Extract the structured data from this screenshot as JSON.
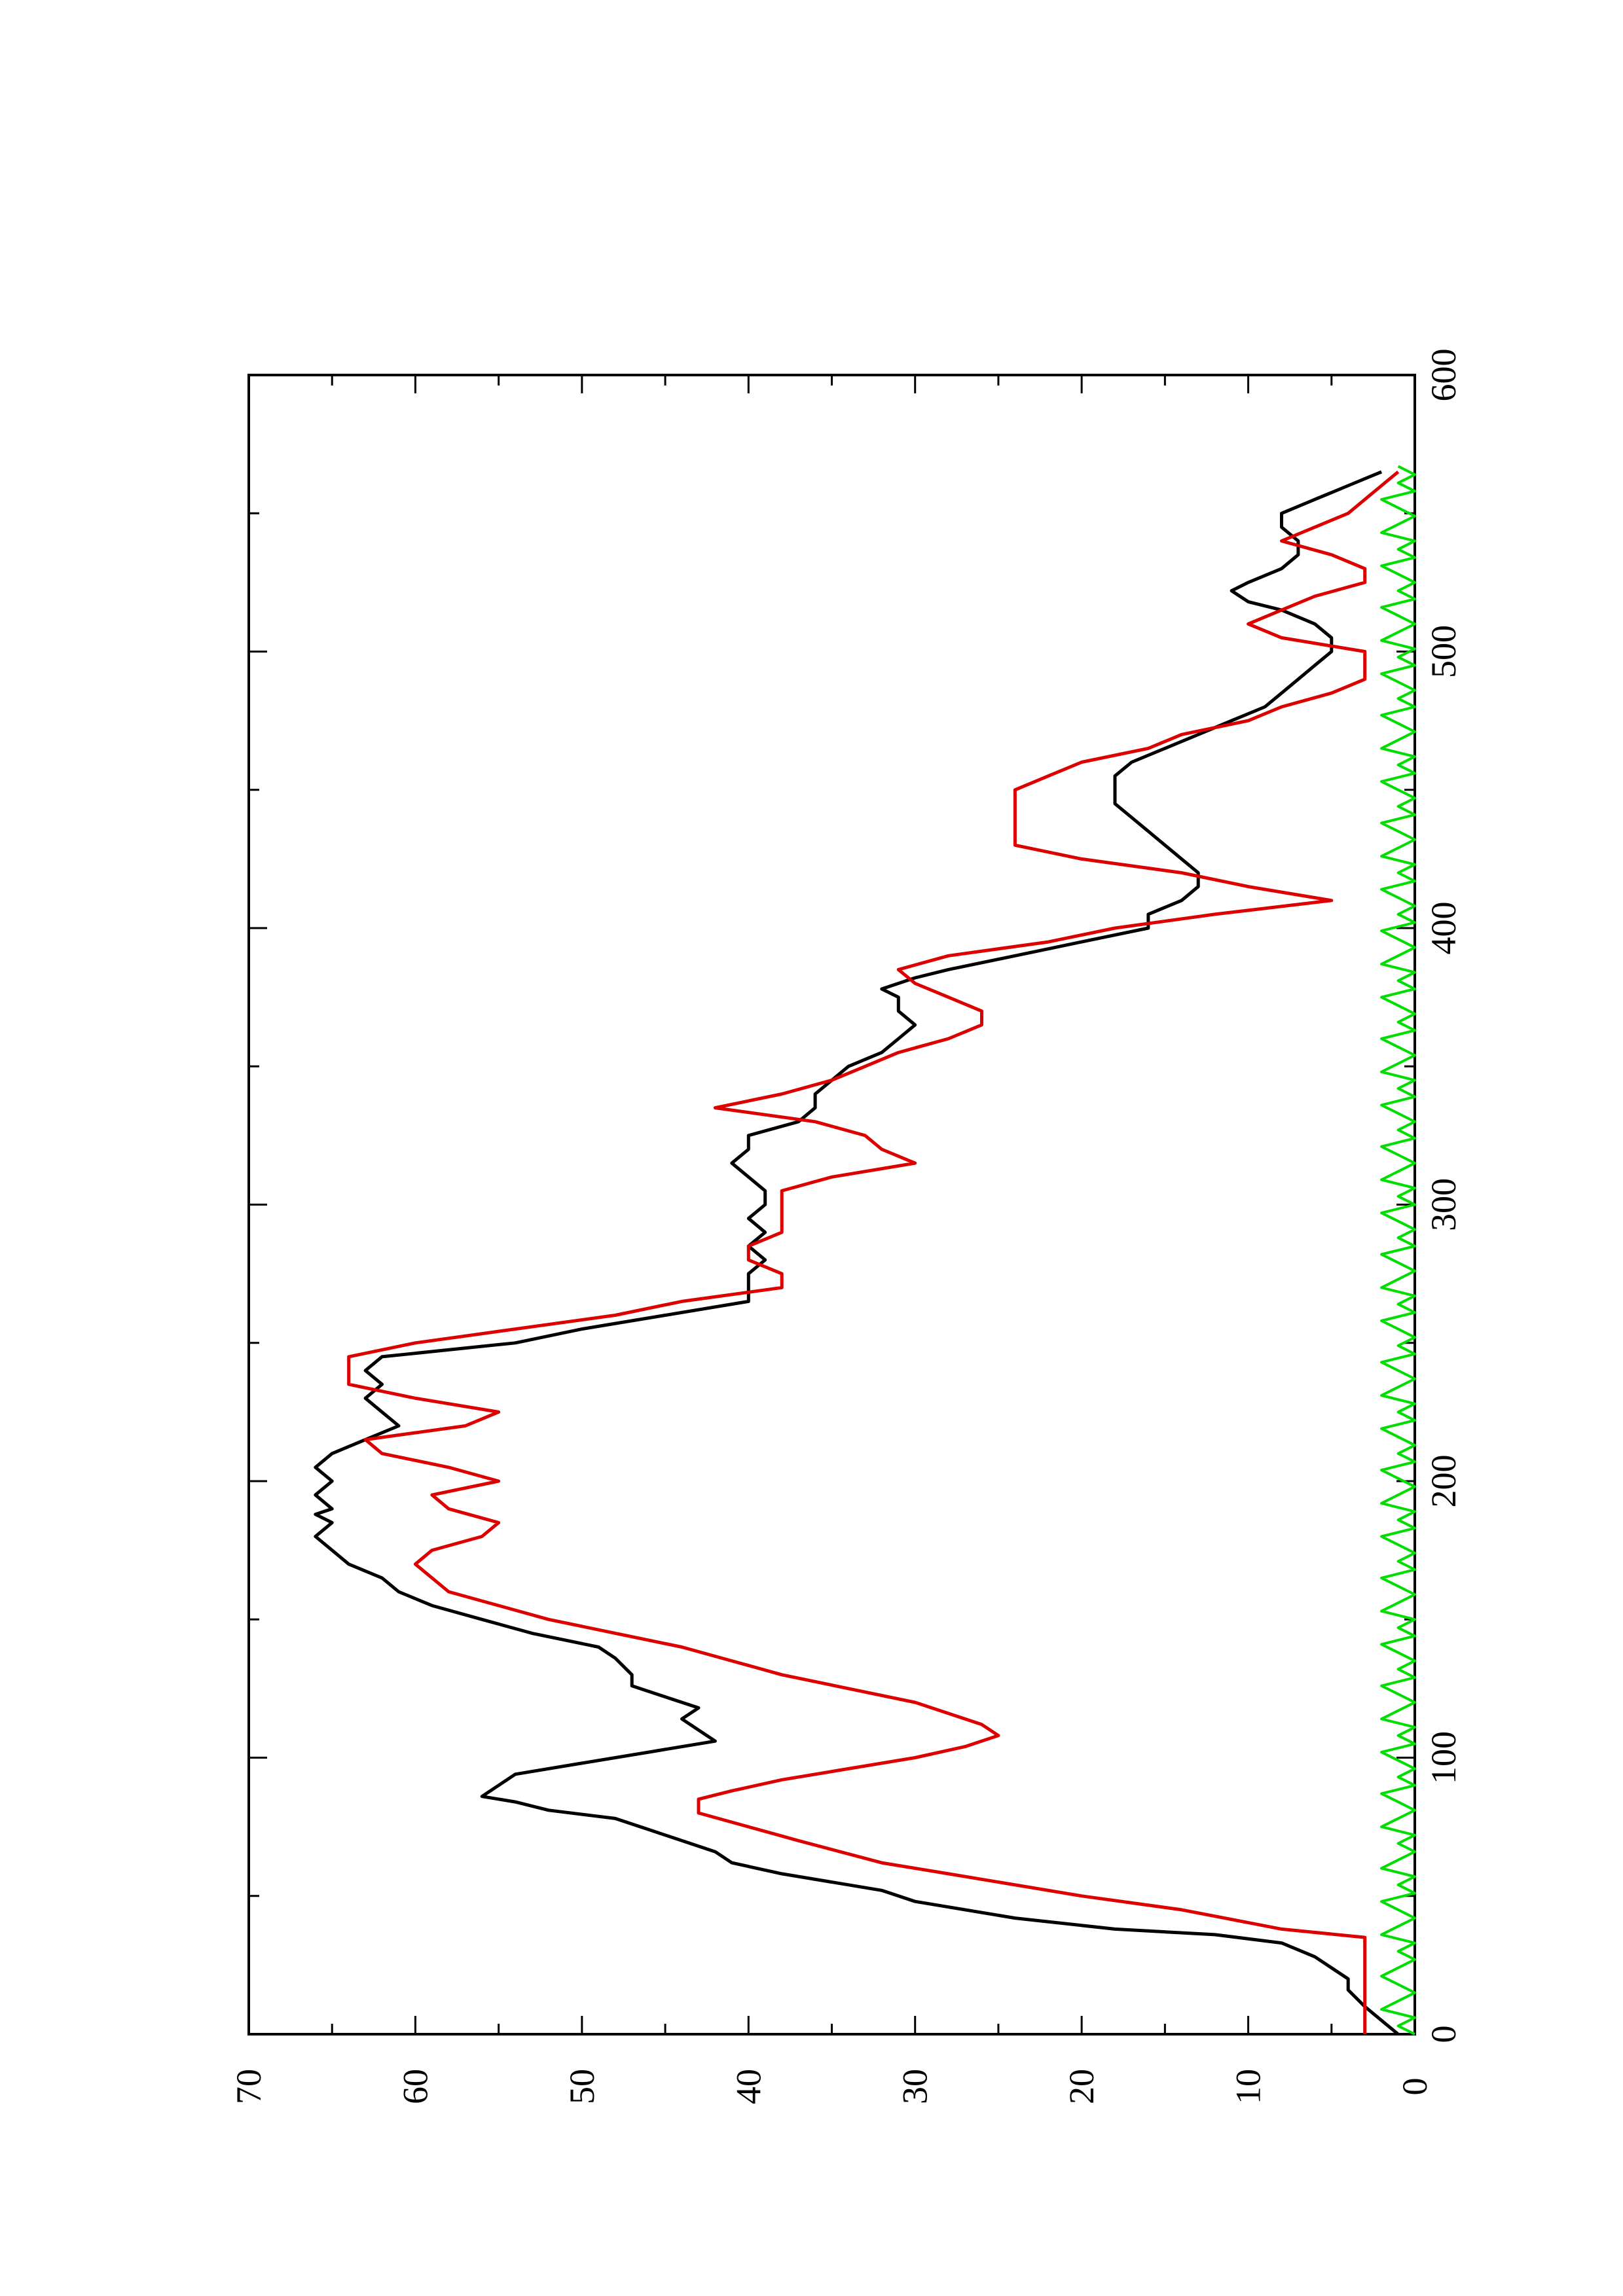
{
  "chart_data": {
    "type": "line",
    "orientation": "rotated-90-ccw",
    "title": "",
    "xlabel": "",
    "ylabel": "",
    "xlim": [
      0,
      600
    ],
    "ylim": [
      0,
      70
    ],
    "grid": false,
    "x_ticks": [
      "0",
      "100",
      "200",
      "300",
      "400",
      "500",
      "600"
    ],
    "y_ticks": [
      "0",
      "10",
      "20",
      "30",
      "40",
      "50",
      "60",
      "70"
    ],
    "colors": {
      "black": "#000000",
      "red": "#dd0000",
      "green": "#00dd00"
    },
    "series": [
      {
        "color": "black",
        "x": [
          0,
          5,
          10,
          16,
          20,
          28,
          33,
          36,
          38,
          42,
          48,
          52,
          58,
          62,
          66,
          70,
          74,
          78,
          81,
          84,
          86,
          90,
          94,
          98,
          102,
          106,
          110,
          114,
          118,
          122,
          126,
          130,
          136,
          140,
          145,
          150,
          155,
          160,
          165,
          170,
          175,
          180,
          185,
          188,
          190,
          195,
          200,
          205,
          210,
          215,
          220,
          225,
          230,
          235,
          240,
          245,
          250,
          255,
          260,
          265,
          270,
          275,
          280,
          285,
          290,
          295,
          300,
          305,
          310,
          315,
          320,
          325,
          330,
          335,
          340,
          345,
          350,
          355,
          360,
          365,
          370,
          375,
          378,
          382,
          385,
          390,
          395,
          400,
          405,
          410,
          415,
          420,
          425,
          430,
          435,
          440,
          445,
          450,
          455,
          460,
          465,
          470,
          475,
          480,
          485,
          490,
          495,
          500,
          505,
          510,
          515,
          518,
          522,
          525,
          530,
          535,
          540,
          545,
          550,
          555,
          560,
          565
        ],
        "y": [
          1,
          2,
          3,
          4,
          4,
          6,
          8,
          12,
          18,
          24,
          30,
          32,
          38,
          41,
          42,
          44,
          46,
          48,
          52,
          54,
          56,
          55,
          54,
          50,
          46,
          42,
          43,
          44,
          43,
          45,
          47,
          47,
          48,
          49,
          53,
          56,
          59,
          61,
          62,
          64,
          65,
          66,
          65,
          66,
          65,
          66,
          65,
          66,
          65,
          63,
          61,
          62,
          63,
          62,
          63,
          62,
          54,
          50,
          45,
          40,
          40,
          40,
          39,
          40,
          39,
          40,
          39,
          39,
          40,
          41,
          40,
          40,
          37,
          36,
          36,
          35,
          34,
          32,
          31,
          30,
          31,
          31,
          32,
          30,
          28,
          24,
          20,
          16,
          16,
          14,
          13,
          13,
          14,
          15,
          16,
          17,
          18,
          18,
          18,
          17,
          15,
          13,
          11,
          9,
          8,
          7,
          6,
          5,
          5,
          6,
          8,
          10,
          11,
          10,
          8,
          7,
          7,
          8,
          8,
          6,
          4,
          2
        ]
      },
      {
        "color": "red",
        "x": [
          0,
          8,
          12,
          25,
          35,
          38,
          45,
          50,
          58,
          62,
          70,
          75,
          80,
          85,
          88,
          92,
          96,
          100,
          104,
          108,
          112,
          116,
          120,
          125,
          130,
          135,
          140,
          145,
          150,
          155,
          160,
          165,
          170,
          175,
          180,
          185,
          190,
          195,
          200,
          205,
          210,
          215,
          220,
          225,
          230,
          235,
          240,
          245,
          250,
          255,
          260,
          265,
          270,
          275,
          280,
          285,
          290,
          295,
          300,
          305,
          310,
          315,
          320,
          325,
          330,
          335,
          340,
          345,
          350,
          355,
          360,
          365,
          370,
          375,
          380,
          385,
          390,
          395,
          400,
          405,
          410,
          415,
          420,
          425,
          430,
          435,
          440,
          445,
          450,
          455,
          460,
          465,
          470,
          475,
          480,
          485,
          490,
          495,
          500,
          505,
          510,
          515,
          520,
          525,
          530,
          535,
          540,
          545,
          550,
          555,
          560,
          565
        ],
        "y": [
          3,
          3,
          3,
          3,
          3,
          8,
          14,
          20,
          28,
          32,
          37,
          40,
          43,
          43,
          41,
          38,
          34,
          30,
          27,
          25,
          26,
          28,
          30,
          34,
          38,
          41,
          44,
          48,
          52,
          55,
          58,
          59,
          60,
          59,
          56,
          55,
          58,
          59,
          55,
          58,
          62,
          63,
          57,
          55,
          60,
          64,
          64,
          64,
          60,
          54,
          48,
          44,
          38,
          38,
          40,
          40,
          38,
          38,
          38,
          38,
          35,
          30,
          32,
          33,
          36,
          42,
          38,
          35,
          33,
          31,
          28,
          26,
          26,
          28,
          30,
          31,
          28,
          22,
          18,
          12,
          5,
          10,
          14,
          20,
          24,
          24,
          24,
          24,
          24,
          22,
          20,
          16,
          14,
          10,
          8,
          5,
          3,
          3,
          3,
          8,
          10,
          8,
          6,
          3,
          3,
          5,
          8,
          6,
          4,
          3,
          2,
          1
        ]
      },
      {
        "color": "green",
        "x": [
          0,
          3,
          6,
          9,
          12,
          15,
          18,
          21,
          24,
          27,
          30,
          33,
          36,
          39,
          42,
          45,
          48,
          51,
          54,
          57,
          60,
          63,
          66,
          69,
          72,
          75,
          78,
          81,
          84,
          87,
          90,
          93,
          96,
          99,
          102,
          105,
          108,
          111,
          114,
          117,
          120,
          123,
          126,
          129,
          132,
          135,
          138,
          141,
          144,
          147,
          150,
          153,
          156,
          159,
          162,
          165,
          168,
          171,
          174,
          177,
          180,
          183,
          186,
          189,
          192,
          195,
          198,
          201,
          204,
          207,
          210,
          213,
          216,
          219,
          222,
          225,
          228,
          231,
          234,
          237,
          240,
          243,
          246,
          249,
          252,
          255,
          258,
          261,
          264,
          267,
          270,
          273,
          276,
          279,
          282,
          285,
          288,
          291,
          294,
          297,
          300,
          303,
          306,
          309,
          312,
          315,
          318,
          321,
          324,
          327,
          330,
          333,
          336,
          339,
          342,
          345,
          348,
          351,
          354,
          357,
          360,
          363,
          366,
          369,
          372,
          375,
          378,
          381,
          384,
          387,
          390,
          393,
          396,
          399,
          402,
          405,
          408,
          411,
          414,
          417,
          420,
          423,
          426,
          429,
          432,
          435,
          438,
          441,
          444,
          447,
          450,
          453,
          456,
          459,
          462,
          465,
          468,
          471,
          474,
          477,
          480,
          483,
          486,
          489,
          492,
          495,
          498,
          501,
          504,
          507,
          510,
          513,
          516,
          519,
          522,
          525,
          528,
          531,
          534,
          537,
          540,
          543,
          546,
          549,
          552,
          555,
          558,
          561,
          564,
          567
        ],
        "y": [
          0,
          1,
          0,
          2,
          1,
          0,
          1,
          2,
          1,
          0,
          1,
          0,
          2,
          1,
          0,
          1,
          2,
          0,
          1,
          0,
          2,
          1,
          0,
          1,
          0,
          2,
          1,
          0,
          1,
          2,
          0,
          1,
          0,
          1,
          2,
          0,
          1,
          0,
          2,
          1,
          0,
          1,
          2,
          0,
          1,
          0,
          1,
          2,
          0,
          1,
          0,
          2,
          1,
          0,
          1,
          2,
          0,
          1,
          0,
          1,
          2,
          0,
          1,
          0,
          2,
          1,
          0,
          1,
          2,
          0,
          1,
          0,
          1,
          2,
          0,
          1,
          0,
          2,
          1,
          0,
          1,
          2,
          0,
          1,
          0,
          1,
          2,
          0,
          1,
          0,
          2,
          1,
          0,
          1,
          2,
          0,
          1,
          0,
          1,
          2,
          0,
          1,
          0,
          2,
          1,
          0,
          1,
          2,
          0,
          1,
          0,
          1,
          2,
          0,
          1,
          0,
          2,
          1,
          0,
          1,
          2,
          0,
          1,
          0,
          1,
          2,
          0,
          1,
          0,
          2,
          1,
          0,
          1,
          2,
          0,
          1,
          0,
          1,
          2,
          0,
          1,
          0,
          2,
          1,
          0,
          1,
          2,
          0,
          1,
          0,
          1,
          2,
          0,
          1,
          0,
          2,
          1,
          0,
          1,
          2,
          0,
          1,
          0,
          1,
          2,
          0,
          1,
          0,
          2,
          1,
          0,
          1,
          2,
          0,
          1,
          0,
          1,
          2,
          0,
          1,
          0,
          2,
          1,
          0,
          1,
          2,
          0,
          1,
          0,
          1
        ]
      }
    ]
  }
}
